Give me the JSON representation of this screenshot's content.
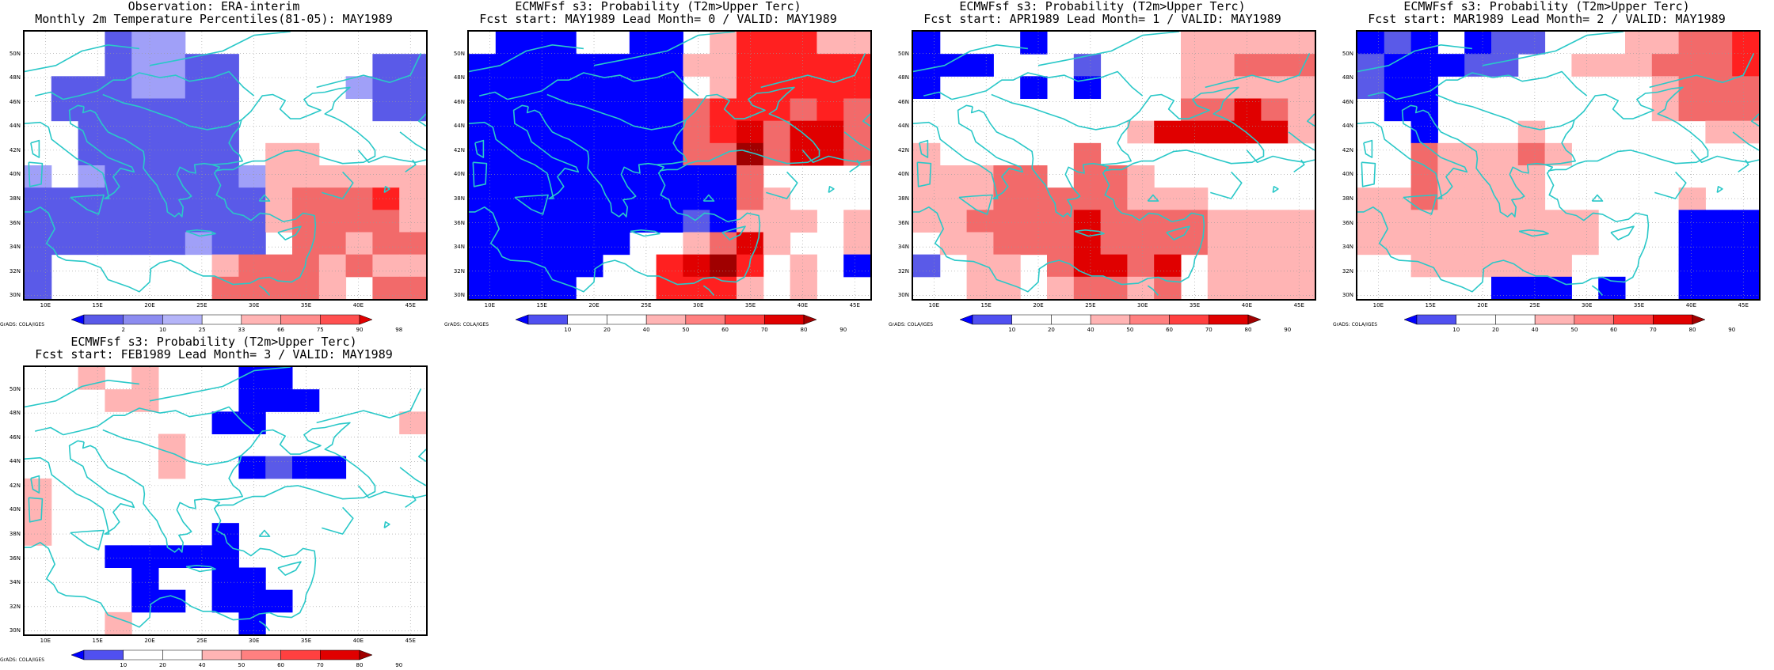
{
  "panels": [
    {
      "title_line1": "Observation: ERA-interim",
      "title_line2": "Monthly 2m Temperature Percentiles(81-05): MAY1989",
      "credit": "GrADS: COLA/IGES",
      "colorbar": {
        "labels": [
          "2",
          "10",
          "25",
          "33",
          "66",
          "75",
          "90",
          "98"
        ],
        "colors": [
          "#0000ff",
          "#5a5ae8",
          "#8c8cf0",
          "#b4b4f8",
          "#ffffff",
          "#ffb4b4",
          "#ff8c8c",
          "#ff5050",
          "#e00000"
        ]
      }
    },
    {
      "title_line1": "ECMWFsf s3: Probability (T2m>Upper Terc)",
      "title_line2": "Fcst start: MAY1989  Lead Month= 0 / VALID: MAY1989",
      "credit": "GrADS: COLA/IGES",
      "colorbar": {
        "labels": [
          "10",
          "20",
          "40",
          "50",
          "60",
          "70",
          "80",
          "90"
        ],
        "colors": [
          "#0000ff",
          "#5050f0",
          "#ffffff",
          "#ffffff",
          "#ffb4b4",
          "#ff8080",
          "#ff4040",
          "#e00000",
          "#a00000"
        ]
      }
    },
    {
      "title_line1": "ECMWFsf s3: Probability (T2m>Upper Terc)",
      "title_line2": "Fcst start: APR1989  Lead Month= 1 / VALID: MAY1989",
      "credit": "GrADS: COLA/IGES",
      "colorbar": {
        "labels": [
          "10",
          "20",
          "40",
          "50",
          "60",
          "70",
          "80",
          "90"
        ],
        "colors": [
          "#0000ff",
          "#5050f0",
          "#ffffff",
          "#ffffff",
          "#ffb4b4",
          "#ff8080",
          "#ff4040",
          "#e00000",
          "#a00000"
        ]
      }
    },
    {
      "title_line1": "ECMWFsf s3: Probability (T2m>Upper Terc)",
      "title_line2": "Fcst start: MAR1989  Lead Month= 2 / VALID: MAY1989",
      "credit": "GrADS: COLA/IGES",
      "colorbar": {
        "labels": [
          "10",
          "20",
          "40",
          "50",
          "60",
          "70",
          "80",
          "90"
        ],
        "colors": [
          "#0000ff",
          "#5050f0",
          "#ffffff",
          "#ffffff",
          "#ffb4b4",
          "#ff8080",
          "#ff4040",
          "#e00000",
          "#a00000"
        ]
      }
    },
    {
      "title_line1": "ECMWFsf s3: Probability (T2m>Upper Terc)",
      "title_line2": "Fcst start: FEB1989  Lead Month= 3 / VALID: MAY1989",
      "credit": "GrADS: COLA/IGES",
      "colorbar": {
        "labels": [
          "10",
          "20",
          "40",
          "50",
          "60",
          "70",
          "80",
          "90"
        ],
        "colors": [
          "#0000ff",
          "#5050f0",
          "#ffffff",
          "#ffffff",
          "#ffb4b4",
          "#ff8080",
          "#ff4040",
          "#e00000",
          "#a00000"
        ]
      }
    }
  ],
  "axes": {
    "lon_labels": [
      "10E",
      "15E",
      "20E",
      "25E",
      "30E",
      "35E",
      "40E",
      "45E"
    ],
    "lat_labels": [
      "50N",
      "48N",
      "46N",
      "44N",
      "42N",
      "40N",
      "38N",
      "36N",
      "34N",
      "32N",
      "30N"
    ]
  },
  "palette": {
    "B3": "#0000ff",
    "B2": "#5a5ae8",
    "B1": "#a0a0f8",
    "W": "#ffffff",
    "R1": "#ffb4b4",
    "R2": "#f26a6a",
    "R3": "#ff2020",
    "R4": "#e00000",
    "R5": "#a00000",
    "coast": "#2ac8c8"
  },
  "grids": [
    [
      "W W W B2 B1 B1 W W W W W W W W W",
      "W W W B2 B1 B1 B2 B2 W W W W W B2 B2",
      "W B2 B2 B2 B1 B1 B2 B2 W W W W B1 B2 B2",
      "W B2 B2 B2 B2 B2 B2 B2 W W W W W B2 B2",
      "W W B2 B2 B2 B2 B2 B2 W W W W W W W",
      "W W B2 B2 B2 B2 B2 B2 W R1 R1 W W W W",
      "B1 W B1 B2 B2 B2 B2 B2 B1 R1 R1 R1 R1 R1 R1",
      "B2 B2 B2 B2 B2 B2 B2 B2 B2 R1 R2 R2 R2 R3 R1",
      "B2 B2 B2 B2 B2 B2 B2 B2 B2 R1 R2 R2 R2 R2 R1",
      "B2 B2 B2 B2 B2 B2 B1 B2 B2 W R2 R2 R1 R2 R2",
      "B2 W W W W W W R1 R2 R2 R2 R1 R2 R1 R1",
      "B2 W W W W W W R2 R2 R2 R2 R1 W R2 R2"
    ],
    [
      "W B3 B3 B3 W W B3 B3 W R1 R3 R3 R3 R1 R1",
      "B3 B3 B3 B3 B3 B3 B3 B3 R1 R1 R3 R3 R3 R3 R3",
      "B3 B3 B3 B3 B3 B3 B3 B3 W R1 R3 R3 R3 R3 R3",
      "B3 B3 B3 B3 B3 B3 B3 B3 R2 R3 R3 R3 R2 R3 R2",
      "B3 B3 B3 B3 B3 B3 B3 B3 R2 R3 R4 R2 R4 R4 R2",
      "B3 B3 B3 B3 B3 B3 B3 B3 R2 R2 R5 R2 R4 R4 R2",
      "B3 B3 B3 B3 B3 B3 B3 B3 B3 B3 R2 W W W W",
      "B3 B3 B3 B3 B3 B3 B3 B3 B3 B3 R2 R1 W W W",
      "B3 B3 B3 B3 B3 B3 B3 B3 B2 B3 R1 R1 R1 W R1",
      "B3 B3 B3 B3 B3 B3 W W R1 R2 R4 R1 W W R1",
      "B3 B3 B3 B3 B3 W W R3 R4 R5 R3 W R1 W B3",
      "B3 B3 B3 B3 W W W R3 R3 R3 R1 W R1 W W"
    ],
    [
      "B3 W W W B3 W W W W W R1 R1 R1 R1 R1",
      "B3 B3 B3 W W W B2 W W W R1 R1 R2 R2 R2",
      "B3 W W W B3 W B3 W W W R1 R1 R1 R1 R1",
      "W W W W W W W W W W R2 R2 R4 R2 R1",
      "W W W W W W W W R1 R4 R4 R4 R4 R4 R1",
      "R1 W W W W W R2 W W W W W W W W",
      "R1 R1 R1 R2 R2 W R2 R2 R1 W W W W W W",
      "R1 R1 R1 R2 R2 R2 R2 R2 R1 R1 R1 W W W W",
      "R1 R1 R2 R2 R2 R2 R4 R2 R2 R2 R2 R1 R1 R1 R1",
      "W R1 R1 R2 R2 R2 R4 R2 R2 R2 R2 R1 R1 R1 R1",
      "B2 W R1 R1 W R2 R4 R4 R2 R4 W R1 R1 R1 R1",
      "W W R1 R1 W R1 R2 R2 R1 R2 W R1 R1 R1 R1"
    ],
    [
      "B3 B2 B3 W B3 B2 B2 W W W R1 R1 R2 R2 R3",
      "B2 B3 B3 B3 B2 B2 W W R1 R1 R1 R2 R2 R2 R3",
      "B2 B3 B3 W W W W W W W W R1 R2 R2 R2",
      "W B3 B3 W W W W W W W W R1 R2 R2 R2",
      "W W B3 W W W R1 W W W W W W R1 R1",
      "W W R2 R1 R1 R1 R2 R1 W W W W W W W",
      "W W R2 R1 R1 R1 R1 W W W W W W W W",
      "R1 R1 R2 R1 R1 R1 R1 W W W W W R1 W W",
      "R1 R1 R1 R1 R1 R1 R1 R1 R1 W W W B3 B3 B3",
      "R1 R1 R1 R1 R1 R1 R1 R1 R1 W W W B3 B3 B3",
      "W W R1 R1 R1 R1 R1 R1 W W W W B3 B3 B3",
      "W W W W W B3 B3 B3 W B3 W W B3 B3 B3"
    ],
    [
      "W W R1 W R1 W W W B3 B3 W W W W W",
      "W W W R1 R1 W W W B3 B3 B3 W W W W",
      "W W W W W W W B3 B3 W W W W W R1",
      "W W W W W R1 W W W W W W W W W",
      "W W W W W R1 W W B3 B2 B3 B3 W W W",
      "R1 W W W W W W W W W W W W W W",
      "R1 W W W W W W W W W W W W W W",
      "R1 W W W W W W B3 W W W W W W W",
      "W W W B3 B3 B3 B3 B3 W W W W W W W",
      "W W W W B3 W W B3 B3 W W W W W W",
      "W W W W B3 B3 W B3 B3 B3 W W W W W",
      "W W W R1 W W W W B3 W W W W W W"
    ]
  ]
}
